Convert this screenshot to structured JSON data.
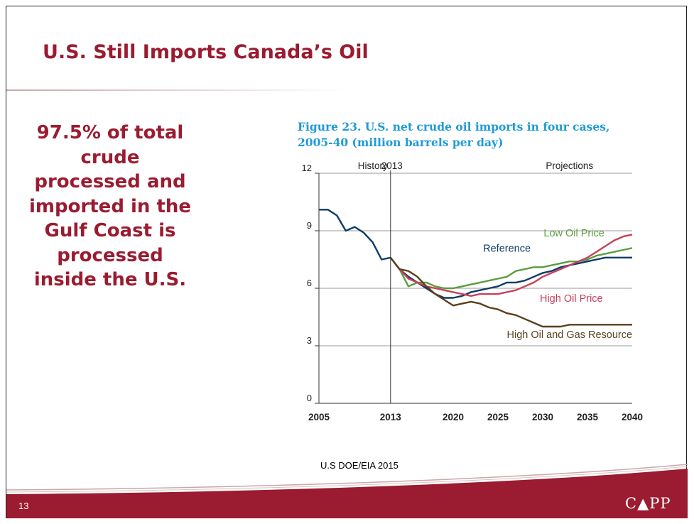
{
  "slide": {
    "title": "U.S. Still Imports Canada’s Oil",
    "callout": "97.5% of total crude processed and imported in the Gulf Coast is processed inside the U.S.",
    "source": "U.S DOE/EIA 2015",
    "page_number": "13",
    "logo_text": {
      "left": "C",
      "leaf": "▲",
      "right": "PP"
    }
  },
  "colors": {
    "accent": "#9b1b30",
    "figure_title": "#1f9ad6",
    "reference": "#0d3b66",
    "low_oil_price": "#5a9e3e",
    "high_oil_price": "#c8415a",
    "high_resource": "#5a3f1c",
    "history": "#0d3b66"
  },
  "chart_data": {
    "type": "line",
    "title": "Figure 23. U.S. net crude oil imports in four cases, 2005-40 (million barrels per day)",
    "xlabel": "",
    "ylabel": "",
    "xlim": [
      2005,
      2040
    ],
    "ylim": [
      0,
      12
    ],
    "xticks": [
      2005,
      2013,
      2020,
      2025,
      2030,
      2035,
      2040
    ],
    "yticks": [
      0,
      3,
      6,
      9,
      12
    ],
    "grid": true,
    "divider_year": 2013,
    "divider_labels": [
      "History",
      "2013",
      "Projections"
    ],
    "history": {
      "x": [
        2005,
        2006,
        2007,
        2008,
        2009,
        2010,
        2011,
        2012,
        2013
      ],
      "values": [
        10.1,
        10.1,
        9.8,
        9.0,
        9.2,
        8.9,
        8.4,
        7.5,
        7.6
      ]
    },
    "series": [
      {
        "name": "Low Oil Price",
        "color_key": "low_oil_price",
        "x": [
          2013,
          2014,
          2015,
          2016,
          2017,
          2018,
          2019,
          2020,
          2021,
          2022,
          2023,
          2024,
          2025,
          2026,
          2027,
          2028,
          2029,
          2030,
          2031,
          2032,
          2033,
          2034,
          2035,
          2036,
          2037,
          2038,
          2039,
          2040
        ],
        "values": [
          7.6,
          7.0,
          6.1,
          6.3,
          6.3,
          6.1,
          6.0,
          6.0,
          6.1,
          6.2,
          6.3,
          6.4,
          6.5,
          6.6,
          6.9,
          7.0,
          7.1,
          7.1,
          7.2,
          7.3,
          7.4,
          7.4,
          7.5,
          7.7,
          7.8,
          7.9,
          8.0,
          8.1
        ]
      },
      {
        "name": "Reference",
        "color_key": "reference",
        "x": [
          2013,
          2014,
          2015,
          2016,
          2017,
          2018,
          2019,
          2020,
          2021,
          2022,
          2023,
          2024,
          2025,
          2026,
          2027,
          2028,
          2029,
          2030,
          2031,
          2032,
          2033,
          2034,
          2035,
          2036,
          2037,
          2038,
          2039,
          2040
        ],
        "values": [
          7.6,
          7.0,
          6.6,
          6.3,
          6.0,
          5.7,
          5.5,
          5.5,
          5.6,
          5.8,
          5.9,
          6.0,
          6.1,
          6.3,
          6.3,
          6.4,
          6.6,
          6.8,
          6.9,
          7.1,
          7.2,
          7.3,
          7.4,
          7.5,
          7.6,
          7.6,
          7.6,
          7.6
        ]
      },
      {
        "name": "High Oil Price",
        "color_key": "high_oil_price",
        "x": [
          2013,
          2014,
          2015,
          2016,
          2017,
          2018,
          2019,
          2020,
          2021,
          2022,
          2023,
          2024,
          2025,
          2026,
          2027,
          2028,
          2029,
          2030,
          2031,
          2032,
          2033,
          2034,
          2035,
          2036,
          2037,
          2038,
          2039,
          2040
        ],
        "values": [
          7.6,
          7.0,
          6.5,
          6.3,
          6.1,
          6.0,
          5.9,
          5.8,
          5.7,
          5.6,
          5.7,
          5.7,
          5.7,
          5.8,
          5.9,
          6.1,
          6.3,
          6.6,
          6.8,
          7.0,
          7.2,
          7.4,
          7.6,
          7.9,
          8.2,
          8.5,
          8.7,
          8.8
        ]
      },
      {
        "name": "High Oil and Gas Resource",
        "color_key": "high_resource",
        "x": [
          2013,
          2014,
          2015,
          2016,
          2017,
          2018,
          2019,
          2020,
          2021,
          2022,
          2023,
          2024,
          2025,
          2026,
          2027,
          2028,
          2029,
          2030,
          2031,
          2032,
          2033,
          2034,
          2035,
          2036,
          2037,
          2038,
          2039,
          2040
        ],
        "values": [
          7.6,
          7.0,
          6.9,
          6.6,
          6.1,
          5.7,
          5.4,
          5.1,
          5.2,
          5.3,
          5.2,
          5.0,
          4.9,
          4.7,
          4.6,
          4.4,
          4.2,
          4.0,
          4.0,
          4.0,
          4.1,
          4.1,
          4.1,
          4.1,
          4.1,
          4.1,
          4.1,
          4.1
        ]
      }
    ]
  }
}
